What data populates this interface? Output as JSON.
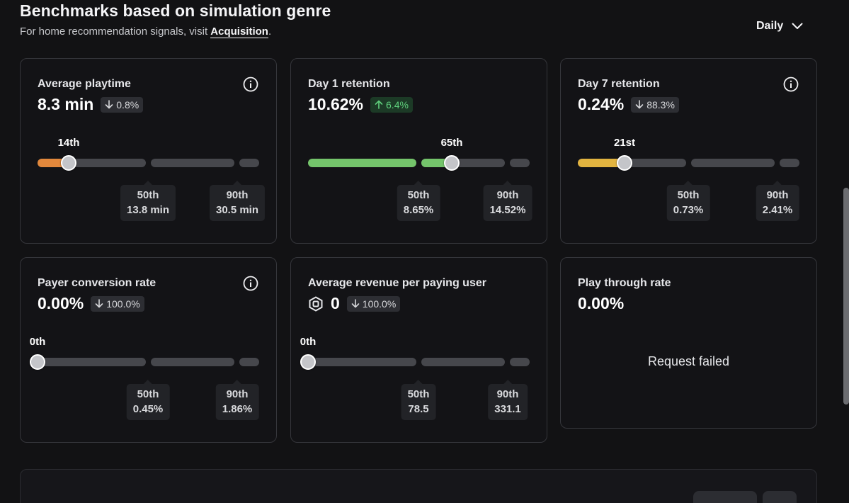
{
  "header": {
    "title": "Benchmarks based on simulation genre",
    "subtitle_prefix": "For home recommendation signals, visit ",
    "link_label": "Acquisition",
    "subtitle_suffix": "."
  },
  "period_selector": {
    "selected": "Daily"
  },
  "cards": [
    {
      "title": "Average playtime",
      "value": "8.3 min",
      "delta": "0.8%",
      "delta_direction": "down",
      "marker_label": "14th",
      "marker_percentile": 14,
      "fill_color": "#e2883c",
      "refs": [
        {
          "pct": "50th",
          "value": "13.8 min"
        },
        {
          "pct": "90th",
          "value": "30.5 min"
        }
      ]
    },
    {
      "title": "Day 1 retention",
      "value": "10.62%",
      "delta": "6.4%",
      "delta_direction": "up",
      "marker_label": "65th",
      "marker_percentile": 65,
      "fill_color": "#74c46b",
      "refs": [
        {
          "pct": "50th",
          "value": "8.65%"
        },
        {
          "pct": "90th",
          "value": "14.52%"
        }
      ]
    },
    {
      "title": "Day 7 retention",
      "value": "0.24%",
      "delta": "88.3%",
      "delta_direction": "down",
      "marker_label": "21st",
      "marker_percentile": 21,
      "fill_color": "#e2b440",
      "refs": [
        {
          "pct": "50th",
          "value": "0.73%"
        },
        {
          "pct": "90th",
          "value": "2.41%"
        }
      ]
    },
    {
      "title": "Payer conversion rate",
      "value": "0.00%",
      "delta": "100.0%",
      "delta_direction": "down",
      "marker_label": "0th",
      "marker_percentile": 0,
      "refs": [
        {
          "pct": "50th",
          "value": "0.45%"
        },
        {
          "pct": "90th",
          "value": "1.86%"
        }
      ]
    },
    {
      "title": "Average revenue per paying user",
      "value": "0",
      "delta": "100.0%",
      "delta_direction": "down",
      "marker_label": "0th",
      "marker_percentile": 0,
      "refs": [
        {
          "pct": "50th",
          "value": "78.5"
        },
        {
          "pct": "90th",
          "value": "331.1"
        }
      ]
    },
    {
      "title": "Play through rate",
      "value": "0.00%",
      "status": "Request failed"
    }
  ],
  "icons": {
    "info": "info-circle-icon",
    "arrow_down": "arrow-down-icon",
    "arrow_up": "arrow-up-icon",
    "chevron": "chevron-down-icon",
    "currency": "robux-icon"
  }
}
